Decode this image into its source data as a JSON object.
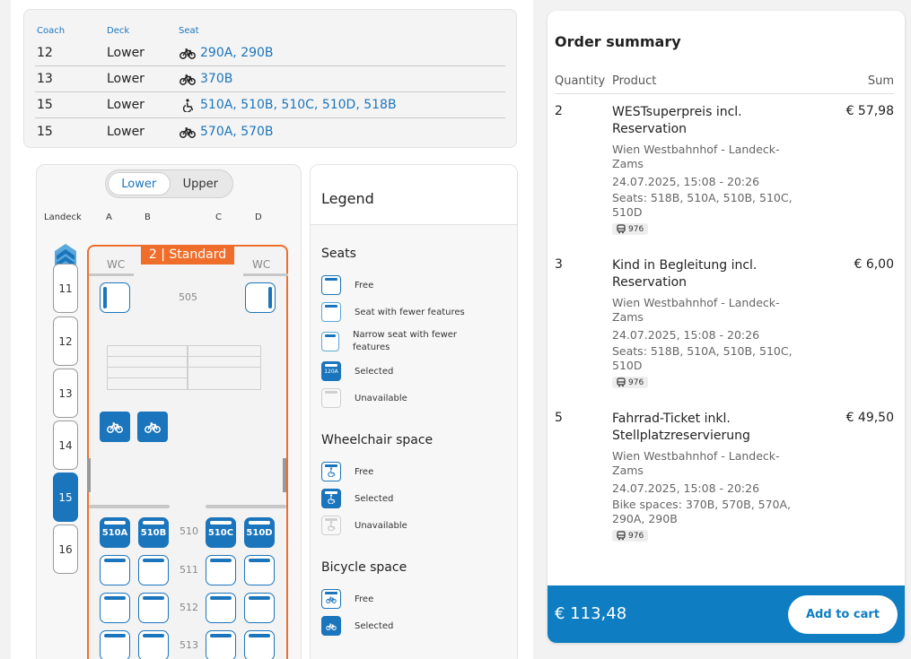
{
  "seat_table": {
    "headers": {
      "coach": "Coach",
      "deck": "Deck",
      "seat": "Seat"
    },
    "rows": [
      {
        "coach": "12",
        "deck": "Lower",
        "icon": "bicycle-icon",
        "seats": "290A, 290B"
      },
      {
        "coach": "13",
        "deck": "Lower",
        "icon": "bicycle-icon",
        "seats": "370B"
      },
      {
        "coach": "15",
        "deck": "Lower",
        "icon": "wheelchair-icon",
        "seats": "510A, 510B, 510C, 510D, 518B"
      },
      {
        "coach": "15",
        "deck": "Lower",
        "icon": "bicycle-icon",
        "seats": "570A, 570B"
      }
    ]
  },
  "seat_map": {
    "deck_options": [
      "Lower",
      "Upper"
    ],
    "active_deck": "Lower",
    "direction_label": "Landeck",
    "column_labels": [
      "A",
      "B",
      "C",
      "D"
    ],
    "coaches": [
      "11",
      "12",
      "13",
      "14",
      "15",
      "16"
    ],
    "active_coach": "15",
    "class_badge": "2 | Standard",
    "wc_label": "WC",
    "rows": [
      "505",
      "510",
      "511",
      "512",
      "513"
    ],
    "selected_seats": [
      "510A",
      "510B",
      "510C",
      "510D"
    ]
  },
  "legend": {
    "title": "Legend",
    "sections": [
      {
        "title": "Seats",
        "items": [
          "Free",
          "Seat with fewer features",
          "Narrow seat with fewer features",
          "Selected",
          "Unavailable"
        ],
        "selected_sample": "120A"
      },
      {
        "title": "Wheelchair space",
        "items": [
          "Free",
          "Selected",
          "Unavailable"
        ]
      },
      {
        "title": "Bicycle space",
        "items": [
          "Free",
          "Selected"
        ]
      }
    ]
  },
  "order": {
    "title": "Order summary",
    "headers": {
      "quantity": "Quantity",
      "product": "Product",
      "sum": "Sum"
    },
    "items": [
      {
        "qty": "2",
        "name": "WESTsuperpreis incl. Reservation",
        "route": "Wien Westbahnhof - Landeck-Zams",
        "date": "24.07.2025, 15:08 - 20:26",
        "detail": "Seats: 518B, 510A, 510B, 510C, 510D",
        "train": "976",
        "sum": "€ 57,98"
      },
      {
        "qty": "3",
        "name": "Kind in Begleitung incl. Reservation",
        "route": "Wien Westbahnhof - Landeck-Zams",
        "date": "24.07.2025, 15:08 - 20:26",
        "detail": "Seats: 518B, 510A, 510B, 510C, 510D",
        "train": "976",
        "sum": "€ 6,00"
      },
      {
        "qty": "5",
        "name": "Fahrrad-Ticket inkl. Stellplatzreservierung",
        "route": "Wien Westbahnhof - Landeck-Zams",
        "date": "24.07.2025, 15:08 - 20:26",
        "detail": "Bike spaces: 370B, 570B, 570A, 290A, 290B",
        "train": "976",
        "sum": "€ 49,50"
      }
    ],
    "total": "€ 113,48",
    "cart_button": "Add to cart"
  },
  "colors": {
    "accent": "#1b75bc",
    "class_badge": "#f06e2c",
    "footer": "#0e7dc2"
  }
}
